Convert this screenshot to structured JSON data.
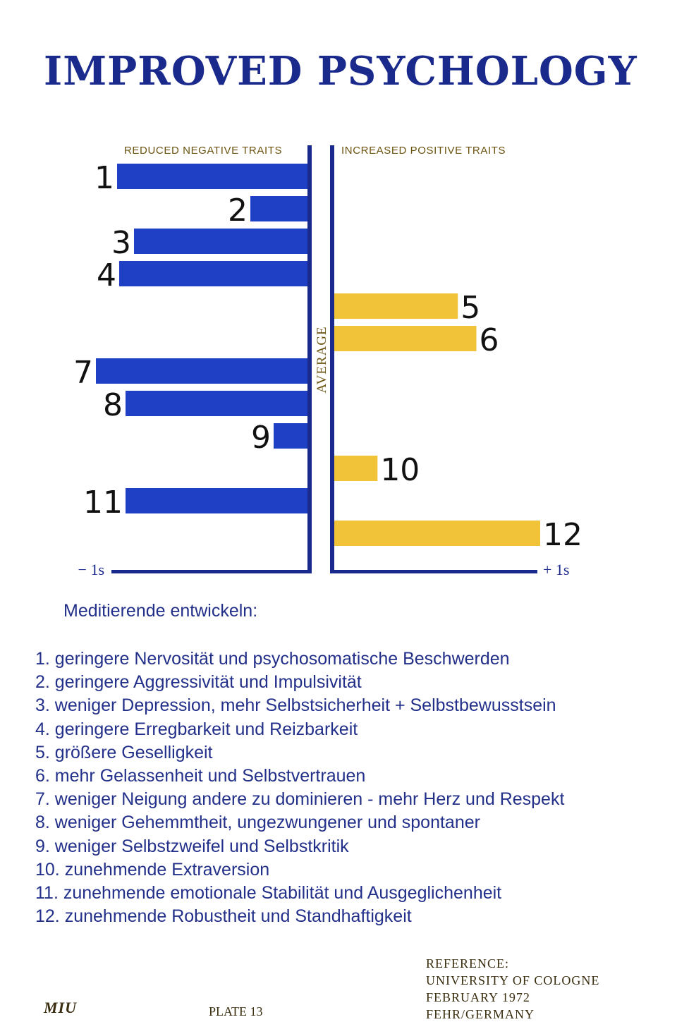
{
  "colors": {
    "title": "#1a2a8c",
    "blue_bar": "#1f3fc4",
    "gold_bar": "#f0c338",
    "axis": "#1a2a8c",
    "label_gold": "#6b5410",
    "list_text": "#23308a",
    "footer_text": "#3a2e10",
    "number_text": "#111111"
  },
  "title": "IMPROVED PSYCHOLOGY",
  "chart_data": {
    "type": "bar",
    "orientation": "horizontal-diverging",
    "header_left": "REDUCED NEGATIVE TRAITS",
    "header_right": "INCREASED POSITIVE TRAITS",
    "center_label": "AVERAGE",
    "x_min_label": "− 1s",
    "x_max_label": "+ 1s",
    "xlim": [
      -1,
      1
    ],
    "unit": "s",
    "categories": [
      "1",
      "2",
      "3",
      "4",
      "5",
      "6",
      "7",
      "8",
      "9",
      "10",
      "11",
      "12"
    ],
    "series": [
      {
        "name": "REDUCED NEGATIVE TRAITS",
        "side": "left",
        "values": [
          0.9,
          0.27,
          0.82,
          0.89,
          null,
          null,
          1.0,
          0.86,
          0.16,
          null,
          0.86,
          null
        ]
      },
      {
        "name": "INCREASED POSITIVE TRAITS",
        "side": "right",
        "values": [
          null,
          null,
          null,
          null,
          0.6,
          0.69,
          null,
          null,
          null,
          0.21,
          null,
          1.0
        ]
      }
    ]
  },
  "intro": "Meditierende entwickeln:",
  "list_items": [
    "1.  geringere Nervosität und psychosomatische Beschwerden",
    "2.  geringere Aggressivität und Impulsivität",
    "3.  weniger Depression, mehr Selbstsicherheit + Selbstbewusstsein",
    "4.  geringere Erregbarkeit und Reizbarkeit",
    "5.  größere Geselligkeit",
    "6.  mehr Gelassenheit und Selbstvertrauen",
    "7.  weniger Neigung andere zu dominieren - mehr Herz und Respekt",
    "8.  weniger Gehemmtheit, ungezwungener und spontaner",
    "9.  weniger Selbstzweifel und Selbstkritik",
    "10. zunehmende Extraversion",
    "11. zunehmende emotionale Stabilität und Ausgeglichenheit",
    "12. zunehmende Robustheit und Standhaftigkeit"
  ],
  "footer": {
    "logo": "MIU",
    "plate": "PLATE 13",
    "reference_lines": [
      "REFERENCE:",
      "UNIVERSITY OF COLOGNE",
      "FEBRUARY 1972",
      "FEHR/GERMANY"
    ]
  }
}
